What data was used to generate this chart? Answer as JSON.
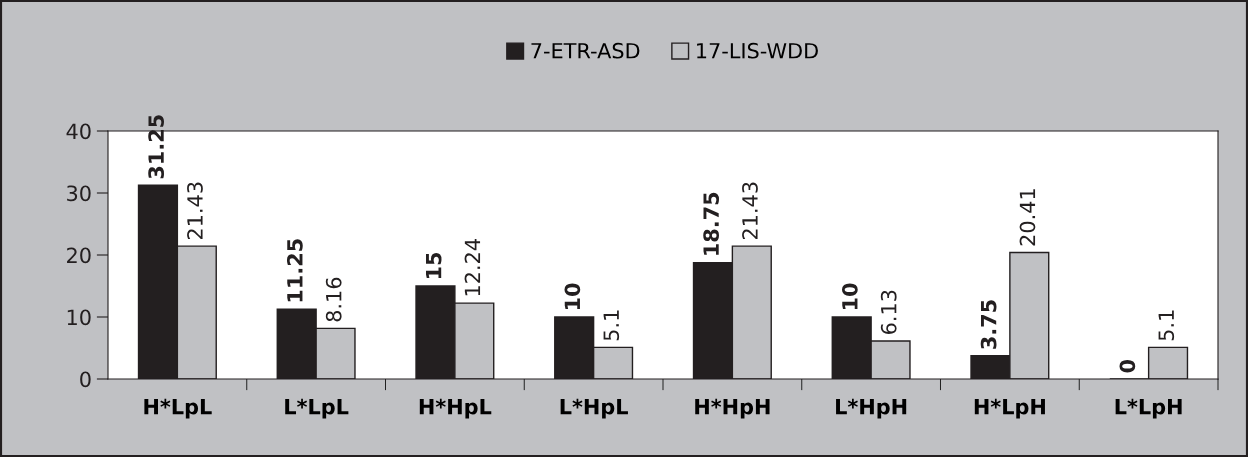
{
  "chart_data": {
    "type": "bar",
    "categories": [
      "H*LpL",
      "L*LpL",
      "H*HpL",
      "L*HpL",
      "H*HpH",
      "L*HpH",
      "H*LpH",
      "L*LpH"
    ],
    "series": [
      {
        "name": "7-ETR-ASD",
        "color": "#231f20",
        "values": [
          31.25,
          11.25,
          15,
          10,
          18.75,
          10,
          3.75,
          0
        ]
      },
      {
        "name": "17-LIS-WDD",
        "color": "#c0c1c4",
        "values": [
          21.43,
          8.16,
          12.24,
          5.1,
          21.43,
          6.13,
          20.41,
          5.1
        ]
      }
    ],
    "ylim": [
      0,
      40
    ],
    "yticks": [
      0,
      10,
      20,
      30,
      40
    ],
    "data_labels": true,
    "legend": "top",
    "grid": false
  }
}
